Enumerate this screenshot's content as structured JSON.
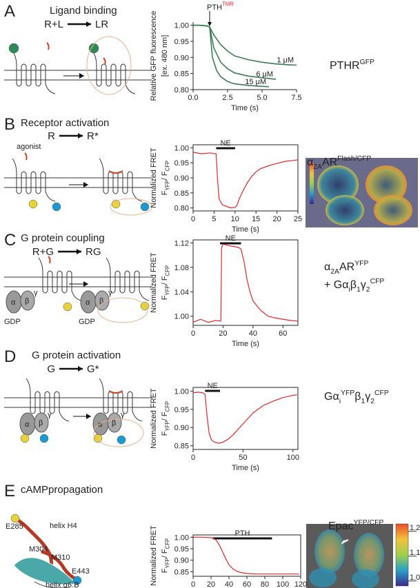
{
  "panels": [
    {
      "letter": "A",
      "title": "Ligand binding",
      "reaction": [
        "R+L",
        "LR"
      ],
      "construct": [
        [
          {
            "t": "PTHR"
          },
          {
            "t": "GFP",
            "s": "sup"
          }
        ]
      ]
    },
    {
      "letter": "B",
      "title": "Receptor activation",
      "reaction": [
        "R",
        "R*"
      ],
      "agonist": "agonist",
      "construct": [
        [
          {
            "t": "α"
          },
          {
            "t": "2A",
            "s": "sub"
          },
          {
            "t": "AR"
          },
          {
            "t": "Flash/CFP",
            "s": "sup"
          }
        ]
      ]
    },
    {
      "letter": "C",
      "title": "G protein coupling",
      "reaction": [
        "R+G",
        "RG"
      ],
      "gdp": "GDP",
      "subunits": [
        "α",
        "β",
        "γ"
      ],
      "construct": [
        [
          {
            "t": "α"
          },
          {
            "t": "2A",
            "s": "sub"
          },
          {
            "t": "AR"
          },
          {
            "t": "YFP",
            "s": "sup"
          }
        ],
        [
          {
            "t": "+ Gα"
          },
          {
            "t": "i",
            "s": "sub"
          },
          {
            "t": "β"
          },
          {
            "t": "1",
            "s": "sub"
          },
          {
            "t": "γ"
          },
          {
            "t": "2",
            "s": "sub"
          },
          {
            "t": "CFP",
            "s": "sup"
          }
        ]
      ]
    },
    {
      "letter": "D",
      "title": "G protein activation",
      "reaction": [
        "G",
        "G*"
      ],
      "subunits": [
        "α",
        "β",
        "γ"
      ],
      "construct": [
        [
          {
            "t": "Gα"
          },
          {
            "t": "i",
            "s": "sub"
          },
          {
            "t": "YFP",
            "s": "sup"
          },
          {
            "t": "β"
          },
          {
            "t": "1",
            "s": "sub"
          },
          {
            "t": "γ"
          },
          {
            "t": "2",
            "s": "sub"
          },
          {
            "t": "CFP",
            "s": "sup"
          }
        ]
      ]
    },
    {
      "letter": "E",
      "title": "cAMPpropagation",
      "labels": [
        "E285",
        "helix H4",
        "M304",
        "M310",
        "E443",
        "helix α6:B"
      ],
      "construct": [
        [
          {
            "t": "Epac"
          },
          {
            "t": "YFP/CFP",
            "s": "sup"
          }
        ]
      ],
      "colorbar": {
        "lim": [
          0.98,
          1.23
        ],
        "ticks": [
          {
            "value": 1.0,
            "label": "1.0"
          },
          {
            "value": 1.1,
            "label": "1.1"
          },
          {
            "value": 1.2,
            "label": "1.2"
          }
        ]
      }
    }
  ],
  "chart_data": [
    {
      "type": "line",
      "ylabel": [
        [
          {
            "t": "Relative GFP fluorescence"
          }
        ],
        [
          {
            "t": "[ex. 480 nm]"
          }
        ]
      ],
      "xlabel": "Time (s)",
      "xlim": [
        0,
        7.5
      ],
      "xticks": [
        {
          "value": 0,
          "label": "0.0"
        },
        {
          "value": 2.5,
          "label": "2.5"
        },
        {
          "value": 5,
          "label": "5.0"
        },
        {
          "value": 7.5,
          "label": "7.5"
        }
      ],
      "ylim": [
        0.8,
        1.01
      ],
      "yticks": [
        {
          "value": 0.8,
          "label": "0.80"
        },
        {
          "value": 0.85,
          "label": "0.85"
        },
        {
          "value": 0.9,
          "label": "0.90"
        },
        {
          "value": 0.95,
          "label": "0.95"
        },
        {
          "value": 1.0,
          "label": "1.00"
        }
      ],
      "frame": false,
      "arrow": {
        "x": 1.2,
        "label": [
          {
            "t": "PTH"
          },
          {
            "t": "TMR",
            "s": "sup"
          }
        ]
      },
      "series": [
        {
          "name": "1 μM",
          "color": "#3a7d52",
          "x": [
            0,
            0.5,
            1.0,
            1.2,
            1.5,
            2.0,
            2.5,
            3.0,
            4.0,
            5.0,
            6.0,
            7.0,
            7.5
          ],
          "values": [
            1.0,
            1.0,
            0.998,
            0.995,
            0.97,
            0.94,
            0.92,
            0.905,
            0.893,
            0.885,
            0.88,
            0.877,
            0.876
          ]
        },
        {
          "name": "6 μM",
          "color": "#3a7d52",
          "x": [
            0,
            0.5,
            1.0,
            1.2,
            1.5,
            2.0,
            2.5,
            3.0,
            4.0,
            5.0,
            6.0
          ],
          "values": [
            1.0,
            1.0,
            0.998,
            0.995,
            0.93,
            0.885,
            0.865,
            0.852,
            0.842,
            0.837,
            0.832
          ]
        },
        {
          "name": "15 μM",
          "color": "#3a7d52",
          "x": [
            0,
            0.5,
            1.0,
            1.2,
            1.4,
            1.7,
            2.0,
            2.5,
            3.0,
            4.0,
            5.0,
            5.5
          ],
          "values": [
            1.0,
            1.0,
            0.998,
            0.995,
            0.9,
            0.86,
            0.84,
            0.825,
            0.818,
            0.813,
            0.81,
            0.809
          ]
        }
      ]
    },
    {
      "type": "line",
      "ylabel": [
        [
          {
            "t": "Normalized FRET"
          }
        ],
        [
          {
            "t": "F"
          },
          {
            "t": "YFP",
            "s": "sub"
          },
          {
            "t": "/ F"
          },
          {
            "t": "CFP",
            "s": "sub"
          }
        ]
      ],
      "xlabel": "Time (s)",
      "xlim": [
        0,
        25
      ],
      "xticks": [
        0,
        5,
        10,
        15,
        20,
        25
      ],
      "ylim": [
        0.79,
        1.01
      ],
      "yticks": [
        {
          "value": 0.8,
          "label": "0.80"
        },
        {
          "value": 0.85,
          "label": "0.85"
        },
        {
          "value": 0.9,
          "label": "0.90"
        },
        {
          "value": 0.95,
          "label": "0.95"
        },
        {
          "value": 1.0,
          "label": "1.00"
        }
      ],
      "frame": true,
      "bar": {
        "label": "NE",
        "start": 5.5,
        "end": 10
      },
      "series": [
        {
          "color": "#e3262b",
          "x": [
            0,
            2,
            4,
            5.5,
            5.8,
            6.2,
            7,
            8,
            9,
            10,
            10.5,
            11,
            12,
            13,
            14,
            15,
            16,
            18,
            20,
            22,
            24,
            25
          ],
          "values": [
            0.985,
            0.98,
            0.983,
            0.98,
            0.9,
            0.83,
            0.81,
            0.805,
            0.8,
            0.802,
            0.81,
            0.83,
            0.86,
            0.885,
            0.905,
            0.92,
            0.93,
            0.94,
            0.948,
            0.955,
            0.958,
            0.96
          ]
        }
      ]
    },
    {
      "type": "line",
      "ylabel": [
        [
          {
            "t": "Normalized FRET"
          }
        ],
        [
          {
            "t": "F"
          },
          {
            "t": "YFP",
            "s": "sub"
          },
          {
            "t": "/ F"
          },
          {
            "t": "CFP",
            "s": "sub"
          }
        ]
      ],
      "xlabel": "Time (s)",
      "xlim": [
        0,
        70
      ],
      "xticks": [
        0,
        20,
        40,
        60
      ],
      "ylim": [
        0.985,
        1.125
      ],
      "yticks": [
        {
          "value": 1.0,
          "label": "1.00"
        },
        {
          "value": 1.04,
          "label": "1.04"
        },
        {
          "value": 1.08,
          "label": "1.08"
        },
        {
          "value": 1.12,
          "label": "1.12"
        }
      ],
      "frame": true,
      "bar": {
        "label": "NE",
        "start": 18,
        "end": 32
      },
      "series": [
        {
          "color": "#e3262b",
          "x": [
            0,
            5,
            10,
            15,
            18.5,
            19,
            20,
            25,
            30,
            32,
            34,
            36,
            38,
            40,
            45,
            50,
            55,
            60,
            65,
            70
          ],
          "values": [
            0.99,
            0.995,
            0.99,
            0.993,
            0.992,
            1.112,
            1.118,
            1.115,
            1.113,
            1.11,
            1.09,
            1.06,
            1.04,
            1.025,
            1.01,
            1.0,
            0.997,
            0.995,
            0.993,
            0.992
          ]
        }
      ]
    },
    {
      "type": "line",
      "ylabel": [
        [
          {
            "t": "Normalized FRET"
          }
        ],
        [
          {
            "t": "F"
          },
          {
            "t": "YFP",
            "s": "sub"
          },
          {
            "t": "/ F"
          },
          {
            "t": "CFP",
            "s": "sub"
          }
        ]
      ],
      "xlabel": "Time (s)",
      "xlim": [
        0,
        105
      ],
      "xticks": [
        0,
        50,
        100
      ],
      "ylim": [
        0.84,
        1.01
      ],
      "yticks": [
        {
          "value": 0.85,
          "label": "0.85"
        },
        {
          "value": 0.9,
          "label": "0.90"
        },
        {
          "value": 0.95,
          "label": "0.95"
        },
        {
          "value": 1.0,
          "label": "1.00"
        }
      ],
      "frame": true,
      "bar": {
        "label": "NE",
        "start": 12,
        "end": 27
      },
      "series": [
        {
          "color": "#e3262b",
          "x": [
            0,
            5,
            10,
            12,
            14,
            16,
            18,
            20,
            25,
            30,
            35,
            40,
            50,
            60,
            70,
            80,
            90,
            100,
            104
          ],
          "values": [
            0.995,
            0.997,
            0.995,
            0.99,
            0.93,
            0.885,
            0.868,
            0.862,
            0.857,
            0.86,
            0.868,
            0.88,
            0.91,
            0.94,
            0.96,
            0.972,
            0.982,
            0.988,
            0.99
          ]
        }
      ]
    },
    {
      "type": "line",
      "ylabel": [
        [
          {
            "t": "Normalized FRET"
          }
        ],
        [
          {
            "t": "F"
          },
          {
            "t": "YFP",
            "s": "sub"
          },
          {
            "t": "/ F"
          },
          {
            "t": "CFP",
            "s": "sub"
          }
        ]
      ],
      "xlim": [
        0,
        120
      ],
      "xticks": [
        0,
        20,
        40,
        60,
        80,
        100,
        120
      ],
      "ylim": [
        0.83,
        1.01
      ],
      "yticks": [
        {
          "value": 0.85,
          "label": "0.85"
        },
        {
          "value": 0.9,
          "label": "0.90"
        },
        {
          "value": 0.95,
          "label": "0.95"
        },
        {
          "value": 1.0,
          "label": "1.00"
        }
      ],
      "frame": true,
      "bar": {
        "label": "PTH",
        "start": 22,
        "end": 88
      },
      "series": [
        {
          "color": "#e3262b",
          "x": [
            0,
            10,
            20,
            22,
            25,
            28,
            30,
            33,
            36,
            40,
            45,
            50,
            55,
            60,
            70,
            80,
            90,
            100,
            110,
            118
          ],
          "values": [
            1.0,
            1.0,
            0.998,
            0.996,
            0.99,
            0.975,
            0.96,
            0.935,
            0.91,
            0.88,
            0.86,
            0.85,
            0.845,
            0.842,
            0.84,
            0.84,
            0.84,
            0.84,
            0.84,
            0.84
          ]
        }
      ]
    }
  ]
}
